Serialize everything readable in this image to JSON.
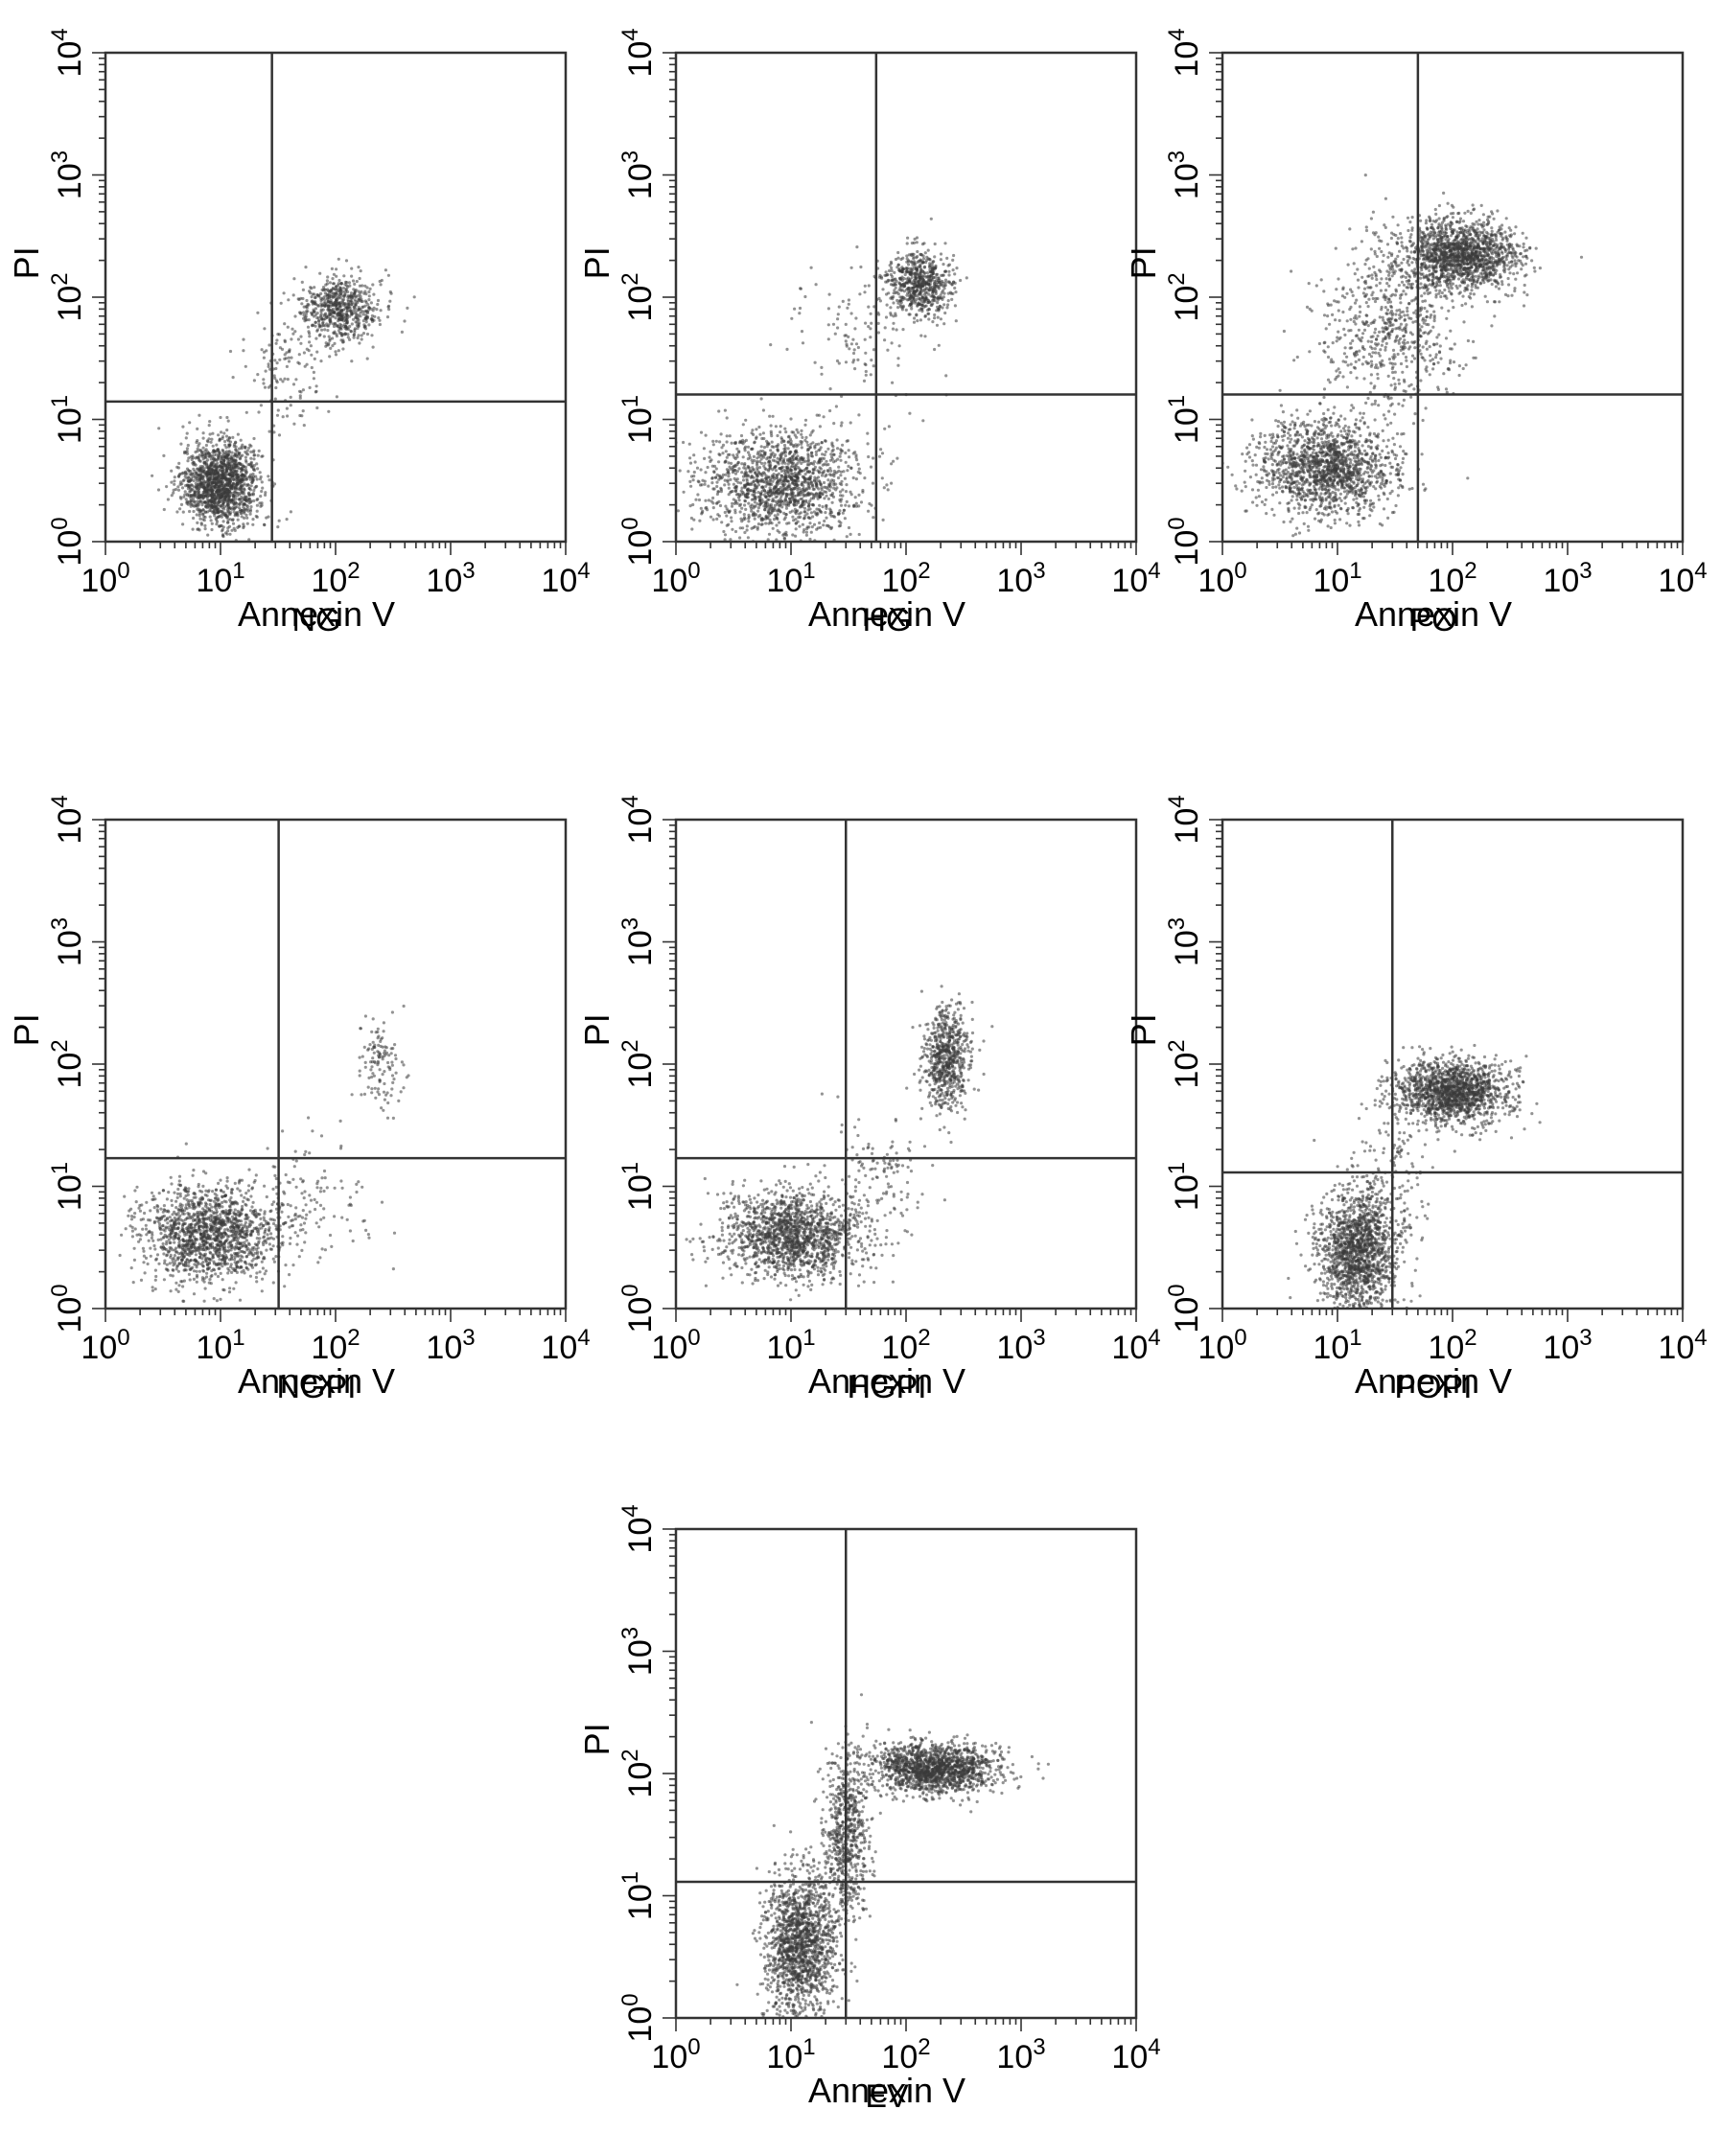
{
  "figure": {
    "x_axis_label": "Annexin V",
    "y_axis_label": "PI",
    "log_ticks": [
      {
        "base": "10",
        "exp": "0"
      },
      {
        "base": "10",
        "exp": "1"
      },
      {
        "base": "10",
        "exp": "2"
      },
      {
        "base": "10",
        "exp": "3"
      },
      {
        "base": "10",
        "exp": "4"
      }
    ],
    "dot_color": "#3a3a3a",
    "line_color": "#333333"
  },
  "chart_data": [
    {
      "type": "scatter",
      "title": "NG",
      "xlabel": "Annexin V",
      "ylabel": "PI",
      "xscale": "log",
      "yscale": "log",
      "xlim": [
        1,
        10000
      ],
      "ylim": [
        1,
        10000
      ],
      "quadrant_gate": {
        "x": 28,
        "y": 14
      },
      "clusters": [
        {
          "center": [
            10,
            3
          ],
          "spread_decades": [
            0.17,
            0.17
          ],
          "density": "dense"
        },
        {
          "center": [
            110,
            80
          ],
          "spread_decades": [
            0.17,
            0.14
          ],
          "density": "medium"
        },
        {
          "center": [
            35,
            25
          ],
          "spread_decades": [
            0.2,
            0.25
          ],
          "density": "sparse"
        }
      ]
    },
    {
      "type": "scatter",
      "title": "HG",
      "xlabel": "Annexin V",
      "ylabel": "PI",
      "xscale": "log",
      "yscale": "log",
      "xlim": [
        1,
        10000
      ],
      "ylim": [
        1,
        10000
      ],
      "quadrant_gate": {
        "x": 55,
        "y": 16
      },
      "clusters": [
        {
          "center": [
            8,
            3
          ],
          "spread_decades": [
            0.35,
            0.22
          ],
          "density": "dense"
        },
        {
          "center": [
            130,
            130
          ],
          "spread_decades": [
            0.14,
            0.13
          ],
          "density": "medium"
        },
        {
          "center": [
            40,
            50
          ],
          "spread_decades": [
            0.3,
            0.3
          ],
          "density": "sparse"
        }
      ]
    },
    {
      "type": "scatter",
      "title": "PO",
      "xlabel": "Annexin V",
      "ylabel": "PI",
      "xscale": "log",
      "yscale": "log",
      "xlim": [
        1,
        10000
      ],
      "ylim": [
        1,
        10000
      ],
      "quadrant_gate": {
        "x": 50,
        "y": 16
      },
      "clusters": [
        {
          "center": [
            8,
            4
          ],
          "spread_decades": [
            0.3,
            0.2
          ],
          "density": "dense"
        },
        {
          "center": [
            120,
            220
          ],
          "spread_decades": [
            0.25,
            0.15
          ],
          "density": "dense"
        },
        {
          "center": [
            30,
            60
          ],
          "spread_decades": [
            0.3,
            0.35
          ],
          "density": "medium"
        }
      ]
    },
    {
      "type": "scatter",
      "title": "NGPI",
      "xlabel": "Annexin V",
      "ylabel": "PI",
      "xscale": "log",
      "yscale": "log",
      "xlim": [
        1,
        10000
      ],
      "ylim": [
        1,
        10000
      ],
      "quadrant_gate": {
        "x": 32,
        "y": 17
      },
      "clusters": [
        {
          "center": [
            8,
            4
          ],
          "spread_decades": [
            0.3,
            0.2
          ],
          "density": "dense"
        },
        {
          "center": [
            250,
            100
          ],
          "spread_decades": [
            0.1,
            0.18
          ],
          "density": "sparse"
        },
        {
          "center": [
            60,
            8
          ],
          "spread_decades": [
            0.25,
            0.25
          ],
          "density": "sparse"
        }
      ]
    },
    {
      "type": "scatter",
      "title": "HGPI",
      "xlabel": "Annexin V",
      "ylabel": "PI",
      "xscale": "log",
      "yscale": "log",
      "xlim": [
        1,
        10000
      ],
      "ylim": [
        1,
        10000
      ],
      "quadrant_gate": {
        "x": 30,
        "y": 17
      },
      "clusters": [
        {
          "center": [
            10,
            4
          ],
          "spread_decades": [
            0.3,
            0.18
          ],
          "density": "dense"
        },
        {
          "center": [
            230,
            110
          ],
          "spread_decades": [
            0.1,
            0.2
          ],
          "density": "medium"
        },
        {
          "center": [
            60,
            12
          ],
          "spread_decades": [
            0.2,
            0.25
          ],
          "density": "sparse"
        }
      ]
    },
    {
      "type": "scatter",
      "title": "POPI",
      "xlabel": "Annexin V",
      "ylabel": "PI",
      "xscale": "log",
      "yscale": "log",
      "xlim": [
        1,
        10000
      ],
      "ylim": [
        1,
        10000
      ],
      "quadrant_gate": {
        "x": 30,
        "y": 13
      },
      "clusters": [
        {
          "center": [
            15,
            3
          ],
          "spread_decades": [
            0.17,
            0.25
          ],
          "density": "dense"
        },
        {
          "center": [
            100,
            60
          ],
          "spread_decades": [
            0.25,
            0.13
          ],
          "density": "dense"
        },
        {
          "center": [
            30,
            12
          ],
          "spread_decades": [
            0.15,
            0.3
          ],
          "density": "sparse"
        }
      ]
    },
    {
      "type": "scatter",
      "title": "EV",
      "xlabel": "Annexin V",
      "ylabel": "PI",
      "xscale": "log",
      "yscale": "log",
      "xlim": [
        1,
        10000
      ],
      "ylim": [
        1,
        10000
      ],
      "quadrant_gate": {
        "x": 30,
        "y": 13
      },
      "clusters": [
        {
          "center": [
            12,
            4
          ],
          "spread_decades": [
            0.15,
            0.3
          ],
          "density": "dense"
        },
        {
          "center": [
            170,
            110
          ],
          "spread_decades": [
            0.28,
            0.1
          ],
          "density": "dense"
        },
        {
          "center": [
            30,
            30
          ],
          "spread_decades": [
            0.1,
            0.35
          ],
          "density": "medium"
        }
      ]
    }
  ]
}
